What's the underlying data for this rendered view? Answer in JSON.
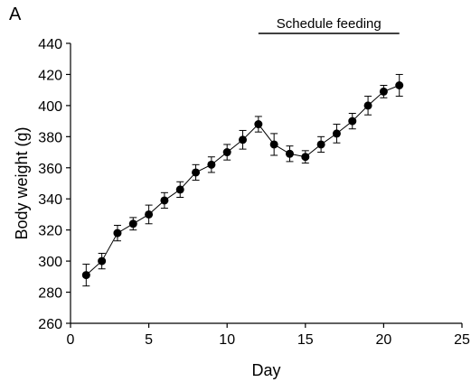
{
  "panel_label": "A",
  "annotation": "Schedule feeding",
  "annotation_range": [
    12,
    21
  ],
  "chart_data": {
    "type": "line",
    "title": "",
    "xlabel": "Day",
    "ylabel": "Body weight (g)",
    "xlim": [
      0,
      25
    ],
    "ylim": [
      260,
      440
    ],
    "xticks": [
      0,
      5,
      10,
      15,
      20,
      25
    ],
    "yticks": [
      260,
      280,
      300,
      320,
      340,
      360,
      380,
      400,
      420,
      440
    ],
    "grid": false,
    "series": [
      {
        "x": [
          1,
          2,
          3,
          4,
          5,
          6,
          7,
          8,
          9,
          10,
          11,
          12,
          13,
          14,
          15,
          16,
          17,
          18,
          19,
          20,
          21
        ],
        "y": [
          291,
          300,
          318,
          324,
          330,
          339,
          346,
          357,
          362,
          370,
          378,
          388,
          375,
          369,
          367,
          375,
          382,
          390,
          400,
          409,
          413
        ],
        "error": [
          7,
          5,
          5,
          4,
          6,
          5,
          5,
          5,
          5,
          5,
          6,
          5,
          7,
          5,
          4,
          5,
          6,
          5,
          6,
          4,
          7
        ]
      }
    ]
  }
}
